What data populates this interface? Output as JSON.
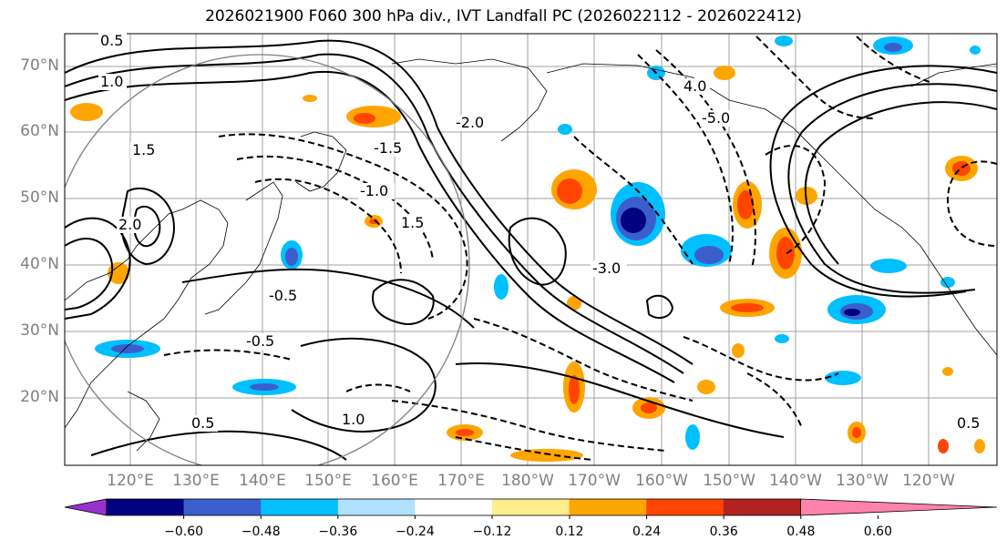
{
  "title": "2026021900 F060 300 hPa div., IVT Landfall PC (2026022112 - 2026022412)",
  "lat_labels": [
    "70°N",
    "60°N",
    "50°N",
    "40°N",
    "30°N",
    "20°N"
  ],
  "lon_labels": [
    "120°E",
    "130°E",
    "140°E",
    "150°E",
    "160°E",
    "170°E",
    "180°W",
    "170°W",
    "160°W",
    "150°W",
    "140°W",
    "130°W",
    "120°W"
  ],
  "colorbar": {
    "colors": [
      "#9932cc",
      "#000080",
      "#3a5fcd",
      "#00bfff",
      "#b0e2ff",
      "#ffffff",
      "#ffec8b",
      "#ffa500",
      "#ff4500",
      "#b22222",
      "#ff82ab"
    ],
    "tick_labels": [
      "−0.60",
      "−0.48",
      "−0.36",
      "−0.24",
      "−0.12",
      "0.12",
      "0.24",
      "0.36",
      "0.48",
      "0.60"
    ]
  },
  "contour_labels": [
    "0.5",
    "1.0",
    "1.5",
    "2.0",
    "-0.5",
    "-1.0",
    "-1.5",
    "-2.0",
    "4.0",
    "-5.0",
    "-3.0",
    "1.5",
    "0.5",
    "1.0",
    "-0.5",
    "0.5"
  ]
}
